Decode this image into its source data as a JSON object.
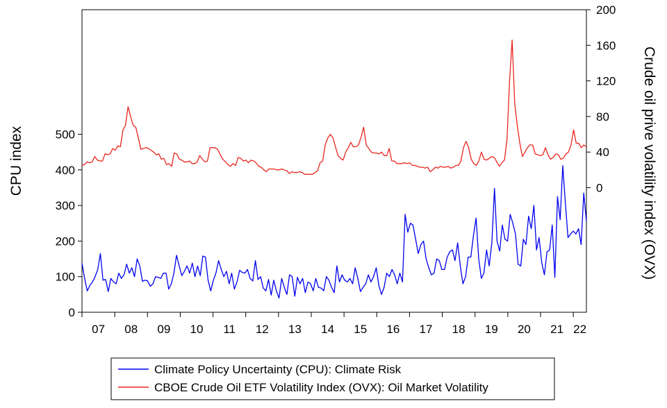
{
  "chart_data": {
    "type": "line",
    "y_left_label": "CPU index",
    "y_right_label": "Crude oil prive volatility index (OVX)",
    "x_tick_labels": [
      "07",
      "08",
      "09",
      "10",
      "11",
      "12",
      "13",
      "14",
      "15",
      "16",
      "17",
      "18",
      "19",
      "20",
      "21",
      "22"
    ],
    "x_range": [
      2007.0,
      2022.4
    ],
    "y_left_ticks": [
      0,
      100,
      200,
      300,
      400,
      500
    ],
    "y_left_lim": [
      0,
      850
    ],
    "y_right_ticks": [
      0,
      40,
      80,
      120,
      160,
      200
    ],
    "y_right_lim": [
      -140,
      200
    ],
    "legend": [
      {
        "label": "Climate Policy Uncertainty (CPU): Climate Risk",
        "color": "#0000ee"
      },
      {
        "label": "CBOE Crude Oil ETF Volatility Index (OVX): Oil Market Volatility",
        "color": "#e8251c"
      }
    ],
    "series": [
      {
        "name": "Climate Policy Uncertainty (CPU): Climate Risk",
        "axis": "left",
        "color": "#0000ee",
        "values": [
          138,
          95,
          60,
          75,
          85,
          100,
          120,
          165,
          90,
          92,
          58,
          95,
          85,
          80,
          110,
          95,
          105,
          135,
          110,
          125,
          100,
          150,
          130,
          87,
          90,
          88,
          73,
          80,
          100,
          98,
          95,
          110,
          110,
          65,
          80,
          110,
          160,
          130,
          103,
          115,
          130,
          110,
          138,
          100,
          130,
          103,
          158,
          155,
          90,
          60,
          90,
          110,
          145,
          120,
          100,
          115,
          80,
          110,
          65,
          85,
          118,
          112,
          110,
          120,
          95,
          88,
          145,
          92,
          100,
          68,
          60,
          92,
          48,
          90,
          60,
          40,
          95,
          70,
          50,
          105,
          100,
          45,
          98,
          80,
          95,
          55,
          85,
          80,
          60,
          95,
          70,
          68,
          60,
          100,
          90,
          70,
          55,
          130,
          85,
          105,
          90,
          85,
          95,
          80,
          125,
          95,
          58,
          70,
          80,
          105,
          85,
          100,
          125,
          75,
          50,
          70,
          110,
          100,
          120,
          105,
          80,
          110,
          85,
          275,
          225,
          250,
          245,
          205,
          165,
          190,
          200,
          150,
          125,
          105,
          110,
          150,
          145,
          120,
          120,
          155,
          170,
          175,
          145,
          195,
          130,
          80,
          100,
          155,
          155,
          215,
          265,
          150,
          95,
          110,
          175,
          130,
          195,
          348,
          200,
          172,
          245,
          205,
          200,
          275,
          250,
          220,
          135,
          130,
          205,
          190,
          270,
          235,
          300,
          175,
          210,
          140,
          105,
          170,
          175,
          245,
          98,
          325,
          260,
          412,
          305,
          210,
          220,
          228,
          220,
          235,
          190,
          335,
          255
        ]
      },
      {
        "name": "CBOE Crude Oil ETF Volatility Index (OVX): Oil Market Volatility",
        "axis": "right",
        "color": "#e8251c",
        "values": [
          25,
          26,
          29,
          28,
          29,
          35,
          31,
          30,
          30,
          38,
          37,
          38,
          44,
          42,
          47,
          46,
          65,
          70,
          91,
          80,
          70,
          68,
          56,
          43,
          44,
          45,
          44,
          42,
          40,
          37,
          38,
          32,
          33,
          26,
          27,
          24,
          39,
          38,
          32,
          31,
          29,
          29,
          30,
          27,
          27,
          29,
          36,
          32,
          29,
          30,
          45,
          45,
          45,
          43,
          37,
          32,
          29,
          26,
          24,
          27,
          25,
          34,
          33,
          30,
          31,
          28,
          31,
          30,
          28,
          24,
          23,
          20,
          18,
          21,
          21,
          21,
          20,
          20,
          21,
          20,
          19,
          16,
          18,
          17,
          17,
          18,
          17,
          15,
          15,
          15,
          15,
          17,
          19,
          28,
          30,
          48,
          56,
          60,
          56,
          46,
          36,
          33,
          31,
          40,
          45,
          51,
          46,
          46,
          48,
          57,
          68,
          48,
          44,
          40,
          39,
          39,
          38,
          40,
          36,
          36,
          44,
          30,
          30,
          27,
          27,
          27,
          28,
          27,
          28,
          25,
          25,
          24,
          23,
          23,
          22,
          23,
          18,
          20,
          23,
          22,
          24,
          23,
          23,
          24,
          22,
          23,
          25,
          25,
          30,
          45,
          52,
          45,
          32,
          27,
          25,
          30,
          40,
          32,
          31,
          33,
          35,
          34,
          29,
          24,
          28,
          31,
          55,
          120,
          166,
          95,
          70,
          50,
          35,
          40,
          45,
          48,
          48,
          38,
          37,
          36,
          37,
          45,
          37,
          32,
          34,
          38,
          37,
          32,
          33,
          38,
          40,
          48,
          65,
          50,
          50,
          45,
          48,
          46
        ]
      }
    ]
  }
}
